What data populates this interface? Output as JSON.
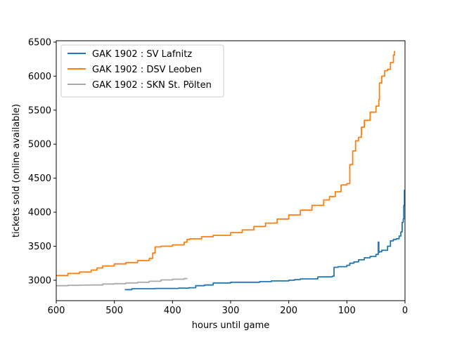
{
  "chart_data": {
    "type": "line",
    "title": "",
    "xlabel": "hours until game",
    "ylabel": "tickets sold (online available)",
    "xlim": [
      600,
      0
    ],
    "ylim": [
      2700,
      6520
    ],
    "x_inverted": true,
    "grid": false,
    "legend_position": "top-left",
    "x_ticks": [
      600,
      500,
      400,
      300,
      200,
      100,
      0
    ],
    "x_tick_labels": [
      "600",
      "500",
      "400",
      "300",
      "200",
      "100",
      "0"
    ],
    "y_ticks": [
      3000,
      3500,
      4000,
      4500,
      5000,
      5500,
      6000,
      6500
    ],
    "y_tick_labels": [
      "3000",
      "3500",
      "4000",
      "4500",
      "5000",
      "5500",
      "6000",
      "6500"
    ],
    "series": [
      {
        "name": "GAK 1902 : SV Lafnitz",
        "color": "#1f77b4",
        "x": [
          482,
          470,
          430,
          390,
          372,
          360,
          345,
          330,
          300,
          250,
          230,
          200,
          190,
          180,
          150,
          125,
          122,
          115,
          100,
          95,
          88,
          80,
          70,
          60,
          50,
          46,
          45,
          44,
          40,
          30,
          25,
          20,
          15,
          10,
          7,
          5,
          3,
          2,
          1
        ],
        "y": [
          2862,
          2875,
          2880,
          2885,
          2890,
          2920,
          2930,
          2960,
          2970,
          2980,
          2990,
          3000,
          3010,
          3020,
          3050,
          3060,
          3190,
          3200,
          3220,
          3250,
          3270,
          3300,
          3330,
          3350,
          3380,
          3560,
          3410,
          3420,
          3440,
          3500,
          3580,
          3600,
          3610,
          3650,
          3710,
          3850,
          3900,
          4100,
          4330
        ]
      },
      {
        "name": "GAK 1902 : DSV Leoben",
        "color": "#ff7f0e",
        "x": [
          600,
          580,
          560,
          540,
          530,
          520,
          500,
          480,
          460,
          440,
          434,
          430,
          420,
          400,
          380,
          375,
          370,
          350,
          330,
          300,
          280,
          260,
          240,
          220,
          200,
          180,
          160,
          140,
          130,
          120,
          110,
          100,
          95,
          90,
          85,
          80,
          75,
          70,
          60,
          50,
          45,
          44,
          40,
          35,
          30,
          25,
          20,
          18
        ],
        "y": [
          3070,
          3100,
          3120,
          3150,
          3180,
          3210,
          3240,
          3260,
          3290,
          3320,
          3400,
          3490,
          3500,
          3520,
          3560,
          3600,
          3610,
          3640,
          3660,
          3700,
          3740,
          3790,
          3840,
          3900,
          3960,
          4030,
          4100,
          4180,
          4230,
          4300,
          4400,
          4420,
          4700,
          4900,
          5050,
          5100,
          5250,
          5350,
          5470,
          5560,
          5650,
          5900,
          6000,
          6080,
          6100,
          6200,
          6310,
          6370
        ]
      },
      {
        "name": "GAK 1902 : SKN St. Pölten",
        "color": "#aaaaaa",
        "x": [
          600,
          580,
          560,
          540,
          520,
          500,
          480,
          460,
          440,
          420,
          400,
          380,
          375
        ],
        "y": [
          2920,
          2925,
          2928,
          2930,
          2945,
          2950,
          2960,
          2970,
          2985,
          3005,
          3015,
          3025,
          3030
        ]
      }
    ]
  }
}
